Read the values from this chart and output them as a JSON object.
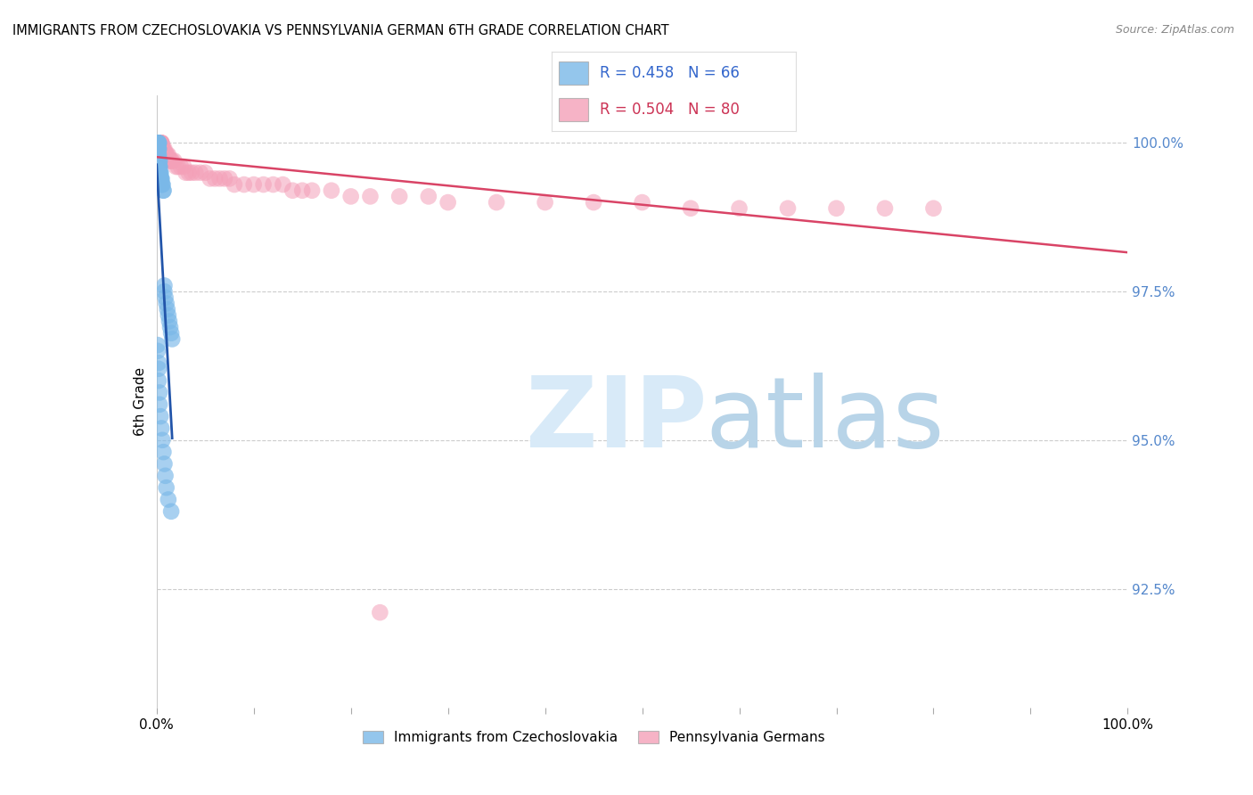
{
  "title": "IMMIGRANTS FROM CZECHOSLOVAKIA VS PENNSYLVANIA GERMAN 6TH GRADE CORRELATION CHART",
  "source": "Source: ZipAtlas.com",
  "ylabel": "6th Grade",
  "ylabel_right_ticks": [
    "100.0%",
    "97.5%",
    "95.0%",
    "92.5%"
  ],
  "ylabel_right_values": [
    1.0,
    0.975,
    0.95,
    0.925
  ],
  "xlim": [
    0.0,
    1.0
  ],
  "ylim": [
    0.905,
    1.008
  ],
  "legend_R_blue": "R = 0.458",
  "legend_N_blue": "N = 66",
  "legend_R_pink": "R = 0.504",
  "legend_N_pink": "N = 80",
  "legend_label_blue": "Immigrants from Czechoslovakia",
  "legend_label_pink": "Pennsylvania Germans",
  "blue_color": "#7ab8e8",
  "pink_color": "#f4a0b8",
  "blue_line_color": "#2255aa",
  "pink_line_color": "#d94466",
  "blue_scatter_x": [
    0.001,
    0.001,
    0.001,
    0.001,
    0.001,
    0.001,
    0.001,
    0.001,
    0.001,
    0.001,
    0.001,
    0.001,
    0.002,
    0.002,
    0.002,
    0.002,
    0.002,
    0.002,
    0.002,
    0.002,
    0.002,
    0.002,
    0.003,
    0.003,
    0.003,
    0.003,
    0.003,
    0.003,
    0.003,
    0.004,
    0.004,
    0.004,
    0.004,
    0.005,
    0.005,
    0.005,
    0.006,
    0.006,
    0.007,
    0.007,
    0.008,
    0.008,
    0.009,
    0.01,
    0.011,
    0.012,
    0.013,
    0.014,
    0.015,
    0.016,
    0.001,
    0.001,
    0.002,
    0.002,
    0.002,
    0.003,
    0.003,
    0.004,
    0.005,
    0.006,
    0.007,
    0.008,
    0.009,
    0.01,
    0.012,
    0.015
  ],
  "blue_scatter_y": [
    1.0,
    1.0,
    1.0,
    1.0,
    1.0,
    1.0,
    1.0,
    1.0,
    1.0,
    1.0,
    1.0,
    1.0,
    1.0,
    1.0,
    1.0,
    1.0,
    0.999,
    0.999,
    0.999,
    0.998,
    0.998,
    0.997,
    0.997,
    0.997,
    0.996,
    0.996,
    0.996,
    0.995,
    0.995,
    0.995,
    0.995,
    0.994,
    0.994,
    0.994,
    0.994,
    0.993,
    0.993,
    0.993,
    0.992,
    0.992,
    0.976,
    0.975,
    0.974,
    0.973,
    0.972,
    0.971,
    0.97,
    0.969,
    0.968,
    0.967,
    0.966,
    0.965,
    0.963,
    0.962,
    0.96,
    0.958,
    0.956,
    0.954,
    0.952,
    0.95,
    0.948,
    0.946,
    0.944,
    0.942,
    0.94,
    0.938
  ],
  "pink_scatter_x": [
    0.001,
    0.001,
    0.001,
    0.001,
    0.001,
    0.001,
    0.002,
    0.002,
    0.002,
    0.002,
    0.002,
    0.003,
    0.003,
    0.003,
    0.003,
    0.004,
    0.004,
    0.004,
    0.004,
    0.005,
    0.005,
    0.005,
    0.005,
    0.006,
    0.006,
    0.007,
    0.007,
    0.008,
    0.008,
    0.009,
    0.01,
    0.01,
    0.011,
    0.012,
    0.013,
    0.014,
    0.015,
    0.016,
    0.018,
    0.02,
    0.022,
    0.025,
    0.028,
    0.03,
    0.033,
    0.036,
    0.04,
    0.045,
    0.05,
    0.055,
    0.06,
    0.065,
    0.07,
    0.075,
    0.08,
    0.09,
    0.1,
    0.11,
    0.12,
    0.13,
    0.14,
    0.15,
    0.16,
    0.18,
    0.2,
    0.22,
    0.25,
    0.28,
    0.3,
    0.35,
    0.4,
    0.45,
    0.5,
    0.55,
    0.6,
    0.65,
    0.7,
    0.75,
    0.8,
    0.23
  ],
  "pink_scatter_y": [
    1.0,
    1.0,
    1.0,
    1.0,
    1.0,
    1.0,
    1.0,
    1.0,
    1.0,
    1.0,
    1.0,
    1.0,
    1.0,
    1.0,
    1.0,
    1.0,
    1.0,
    1.0,
    1.0,
    1.0,
    1.0,
    1.0,
    1.0,
    0.999,
    0.999,
    0.999,
    0.999,
    0.999,
    0.998,
    0.998,
    0.998,
    0.998,
    0.998,
    0.998,
    0.997,
    0.997,
    0.997,
    0.997,
    0.997,
    0.996,
    0.996,
    0.996,
    0.996,
    0.995,
    0.995,
    0.995,
    0.995,
    0.995,
    0.995,
    0.994,
    0.994,
    0.994,
    0.994,
    0.994,
    0.993,
    0.993,
    0.993,
    0.993,
    0.993,
    0.993,
    0.992,
    0.992,
    0.992,
    0.992,
    0.991,
    0.991,
    0.991,
    0.991,
    0.99,
    0.99,
    0.99,
    0.99,
    0.99,
    0.989,
    0.989,
    0.989,
    0.989,
    0.989,
    0.989,
    0.921
  ]
}
